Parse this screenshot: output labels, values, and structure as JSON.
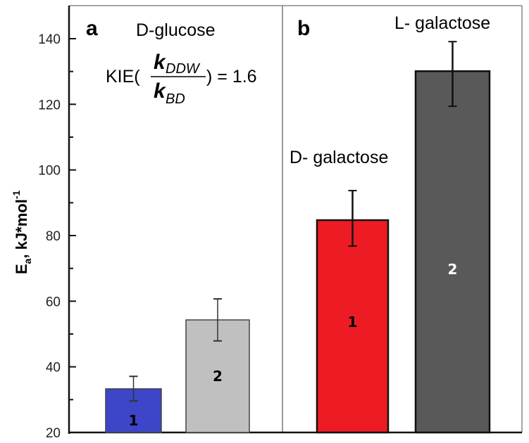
{
  "chart_data": {
    "type": "bar",
    "title": "",
    "xlabel": "",
    "ylabel": "E_a, kJ*mol^-1",
    "ylabel_parts": {
      "main": "E",
      "sub": "a",
      "rest": ", kJ*mol",
      "sup": "-1"
    },
    "ylim": [
      20,
      150
    ],
    "yticks_major": [
      20,
      40,
      60,
      80,
      100,
      120,
      140
    ],
    "yticks_minor": [
      30,
      50,
      70,
      90,
      110,
      130
    ],
    "grid": false,
    "legend": "none",
    "panels": [
      {
        "letter": "a",
        "title": "D-glucose",
        "annotation": {
          "prefix": "KIE(",
          "numerator_k": "k",
          "numerator_sub": "DDW",
          "denominator_k": "k",
          "denominator_sub": "BD",
          "suffix": ") = 1.6"
        },
        "bars": [
          {
            "label": "1",
            "value": 33.3,
            "err_low": 29.6,
            "err_high": 37.1,
            "color": "#3d45c8",
            "label_color": "#000000"
          },
          {
            "label": "2",
            "value": 54.3,
            "err_low": 47.9,
            "err_high": 60.7,
            "color": "#c0c0c0",
            "label_color": "#000000"
          }
        ]
      },
      {
        "letter": "b",
        "bars": [
          {
            "label": "1",
            "value": 84.7,
            "err_low": 76.8,
            "err_high": 93.7,
            "color": "#ed1c24",
            "label_color": "#000000",
            "name": "D- galactose"
          },
          {
            "label": "2",
            "value": 130.1,
            "err_low": 119.4,
            "err_high": 139.1,
            "color": "#595959",
            "label_color": "#ffffff",
            "name": "L- galactose"
          }
        ]
      }
    ]
  }
}
